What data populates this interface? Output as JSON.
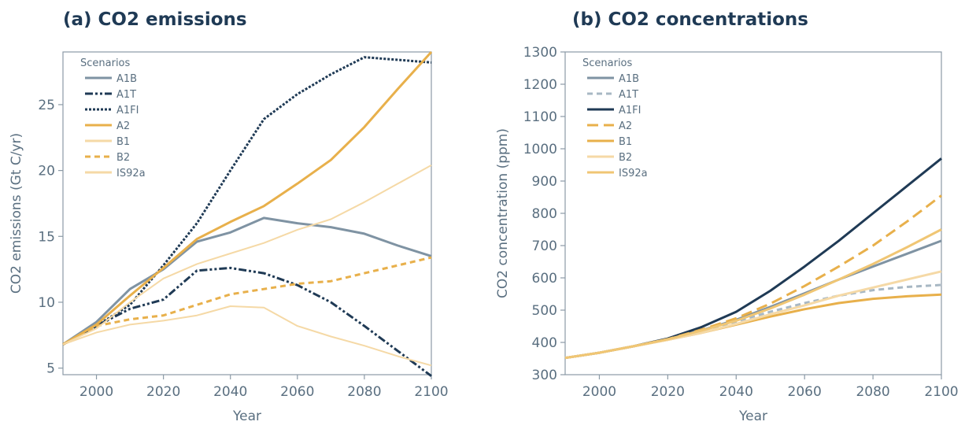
{
  "chart_data": [
    {
      "type": "line",
      "title": "(a) CO2 emissions",
      "xlabel": "Year",
      "ylabel": "CO2 emissions (Gt C/yr)",
      "xlim": [
        1990,
        2100
      ],
      "ylim": [
        4.5,
        29
      ],
      "xticks": [
        2000,
        2020,
        2040,
        2060,
        2080,
        2100
      ],
      "yticks": [
        5,
        10,
        15,
        20,
        25
      ],
      "legend_title": "Scenarios",
      "legend_position": "top-left",
      "grid": false,
      "series": [
        {
          "name": "A1B",
          "color": "#7f93a3",
          "style": "solid",
          "width": 3,
          "x": [
            1990,
            2000,
            2010,
            2020,
            2030,
            2040,
            2050,
            2060,
            2070,
            2080,
            2090,
            2100
          ],
          "y": [
            6.8,
            8.5,
            11.0,
            12.5,
            14.6,
            15.3,
            16.4,
            16.0,
            15.7,
            15.2,
            14.3,
            13.5
          ]
        },
        {
          "name": "A1T",
          "color": "#1f3a55",
          "style": "dashdot",
          "width": 3,
          "x": [
            1990,
            2000,
            2010,
            2020,
            2030,
            2040,
            2050,
            2060,
            2070,
            2080,
            2090,
            2100
          ],
          "y": [
            6.8,
            8.2,
            9.5,
            10.2,
            12.4,
            12.6,
            12.2,
            11.3,
            10.0,
            8.2,
            6.3,
            4.4
          ]
        },
        {
          "name": "A1FI",
          "color": "#1f3a55",
          "style": "dotted",
          "width": 3,
          "x": [
            1990,
            2000,
            2010,
            2020,
            2030,
            2040,
            2050,
            2060,
            2070,
            2080,
            2090,
            2100
          ],
          "y": [
            6.8,
            8.2,
            9.8,
            12.8,
            16.0,
            20.0,
            23.9,
            25.8,
            27.3,
            28.6,
            28.4,
            28.2
          ]
        },
        {
          "name": "A2",
          "color": "#e8b04b",
          "style": "solid",
          "width": 3,
          "x": [
            1990,
            2000,
            2010,
            2020,
            2030,
            2040,
            2050,
            2060,
            2070,
            2080,
            2090,
            2100
          ],
          "y": [
            6.8,
            8.3,
            10.5,
            12.6,
            14.8,
            16.1,
            17.3,
            19.0,
            20.8,
            23.3,
            26.2,
            29.0
          ]
        },
        {
          "name": "B1",
          "color": "#f5d9a6",
          "style": "solid",
          "width": 2,
          "x": [
            1990,
            2000,
            2010,
            2020,
            2030,
            2040,
            2050,
            2060,
            2070,
            2080,
            2090,
            2100
          ],
          "y": [
            6.8,
            7.7,
            8.3,
            8.6,
            9.0,
            9.7,
            9.6,
            8.2,
            7.4,
            6.7,
            5.9,
            5.2
          ]
        },
        {
          "name": "B2",
          "color": "#e8b04b",
          "style": "dashed",
          "width": 3,
          "x": [
            1990,
            2000,
            2010,
            2020,
            2030,
            2040,
            2050,
            2060,
            2070,
            2080,
            2090,
            2100
          ],
          "y": [
            6.8,
            8.2,
            8.7,
            9.0,
            9.8,
            10.6,
            11.0,
            11.4,
            11.6,
            12.2,
            12.8,
            13.4
          ]
        },
        {
          "name": "IS92a",
          "color": "#f5d9a6",
          "style": "solid",
          "width": 2,
          "x": [
            1990,
            2000,
            2010,
            2020,
            2030,
            2040,
            2050,
            2060,
            2070,
            2080,
            2090,
            2100
          ],
          "y": [
            6.8,
            8.0,
            10.0,
            11.8,
            12.9,
            13.7,
            14.5,
            15.5,
            16.3,
            17.6,
            19.0,
            20.4
          ]
        }
      ]
    },
    {
      "type": "line",
      "title": "(b) CO2 concentrations",
      "xlabel": "Year",
      "ylabel": "CO2 concentration (ppm)",
      "xlim": [
        1990,
        2100
      ],
      "ylim": [
        300,
        1300
      ],
      "xticks": [
        2000,
        2020,
        2040,
        2060,
        2080,
        2100
      ],
      "yticks": [
        300,
        400,
        500,
        600,
        700,
        800,
        900,
        1000,
        1100,
        1200,
        1300
      ],
      "legend_title": "Scenarios",
      "legend_position": "top-left",
      "grid": false,
      "series": [
        {
          "name": "A1B",
          "color": "#7f93a3",
          "style": "solid",
          "width": 3,
          "x": [
            1990,
            2000,
            2010,
            2020,
            2030,
            2040,
            2050,
            2060,
            2070,
            2080,
            2090,
            2100
          ],
          "y": [
            352,
            368,
            388,
            410,
            438,
            470,
            510,
            552,
            595,
            635,
            675,
            715
          ]
        },
        {
          "name": "A1T",
          "color": "#a8b8c4",
          "style": "dashed",
          "width": 3,
          "x": [
            1990,
            2000,
            2010,
            2020,
            2030,
            2040,
            2050,
            2060,
            2070,
            2080,
            2090,
            2100
          ],
          "y": [
            352,
            368,
            388,
            410,
            435,
            465,
            495,
            522,
            545,
            562,
            572,
            578
          ]
        },
        {
          "name": "A1FI",
          "color": "#1f3a55",
          "style": "solid",
          "width": 3,
          "x": [
            1990,
            2000,
            2010,
            2020,
            2030,
            2040,
            2050,
            2060,
            2070,
            2080,
            2090,
            2100
          ],
          "y": [
            352,
            368,
            388,
            412,
            448,
            495,
            560,
            635,
            715,
            800,
            885,
            970
          ]
        },
        {
          "name": "A2",
          "color": "#e8b04b",
          "style": "longdash",
          "width": 3,
          "x": [
            1990,
            2000,
            2010,
            2020,
            2030,
            2040,
            2050,
            2060,
            2070,
            2080,
            2090,
            2100
          ],
          "y": [
            352,
            368,
            388,
            410,
            440,
            475,
            520,
            575,
            635,
            700,
            775,
            855
          ]
        },
        {
          "name": "B1",
          "color": "#e8b04b",
          "style": "solid",
          "width": 3,
          "x": [
            1990,
            2000,
            2010,
            2020,
            2030,
            2040,
            2050,
            2060,
            2070,
            2080,
            2090,
            2100
          ],
          "y": [
            352,
            368,
            388,
            408,
            430,
            455,
            480,
            503,
            522,
            535,
            543,
            548
          ]
        },
        {
          "name": "B2",
          "color": "#f5d9a6",
          "style": "solid",
          "width": 3,
          "x": [
            1990,
            2000,
            2010,
            2020,
            2030,
            2040,
            2050,
            2060,
            2070,
            2080,
            2090,
            2100
          ],
          "y": [
            352,
            368,
            388,
            408,
            430,
            457,
            487,
            515,
            545,
            570,
            595,
            620
          ]
        },
        {
          "name": "IS92a",
          "color": "#f0c674",
          "style": "solid",
          "width": 3,
          "x": [
            1990,
            2000,
            2010,
            2020,
            2030,
            2040,
            2050,
            2060,
            2070,
            2080,
            2090,
            2100
          ],
          "y": [
            352,
            368,
            388,
            410,
            437,
            467,
            505,
            548,
            595,
            643,
            695,
            750
          ]
        }
      ]
    }
  ]
}
